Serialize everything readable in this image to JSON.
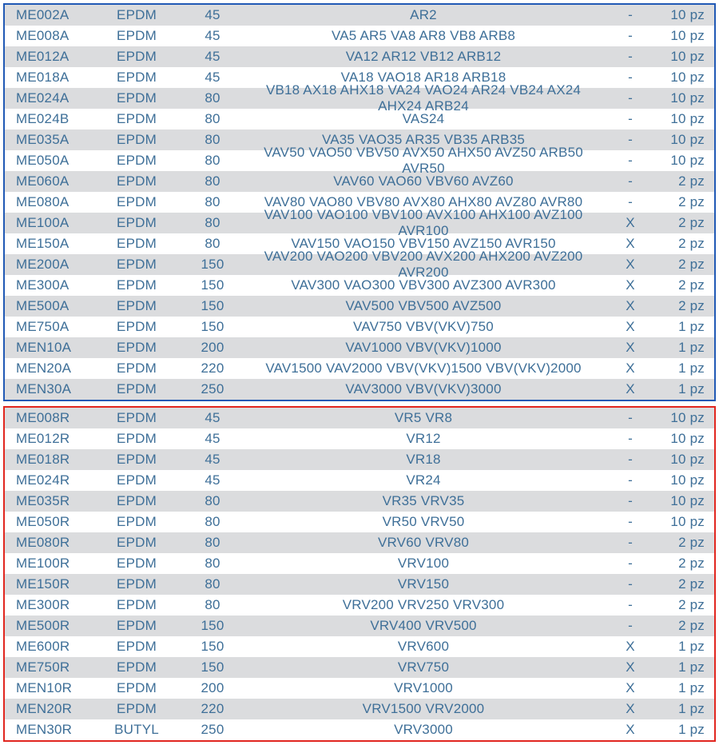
{
  "colors": {
    "text": "#3e6f98",
    "stripe": "#dbdcde",
    "plain": "#ffffff",
    "borderA": "#2059b5",
    "borderB": "#e1261f"
  },
  "columns": [
    {
      "key": "code",
      "class": "c1"
    },
    {
      "key": "mat",
      "class": "c2"
    },
    {
      "key": "num",
      "class": "c3"
    },
    {
      "key": "desc",
      "class": "c4"
    },
    {
      "key": "flag",
      "class": "c5"
    },
    {
      "key": "qty",
      "class": "c6"
    }
  ],
  "tableA": {
    "border": "borderA",
    "rows": [
      {
        "code": "ME002A",
        "mat": "EPDM",
        "num": "45",
        "desc": "AR2",
        "flag": "-",
        "qty": "10 pz"
      },
      {
        "code": "ME008A",
        "mat": "EPDM",
        "num": "45",
        "desc": "VA5 AR5 VA8 AR8 VB8 ARB8",
        "flag": "-",
        "qty": "10 pz"
      },
      {
        "code": "ME012A",
        "mat": "EPDM",
        "num": "45",
        "desc": "VA12 AR12 VB12 ARB12",
        "flag": "-",
        "qty": "10 pz"
      },
      {
        "code": "ME018A",
        "mat": "EPDM",
        "num": "45",
        "desc": "VA18 VAO18 AR18 ARB18",
        "flag": "-",
        "qty": "10 pz"
      },
      {
        "code": "ME024A",
        "mat": "EPDM",
        "num": "80",
        "desc": "VB18 AX18 AHX18 VA24 VAO24 AR24 VB24 AX24 AHX24 ARB24",
        "flag": "-",
        "qty": "10 pz"
      },
      {
        "code": "ME024B",
        "mat": "EPDM",
        "num": "80",
        "desc": "VAS24",
        "flag": "-",
        "qty": "10 pz"
      },
      {
        "code": "ME035A",
        "mat": "EPDM",
        "num": "80",
        "desc": "VA35 VAO35 AR35 VB35 ARB35",
        "flag": "-",
        "qty": "10 pz"
      },
      {
        "code": "ME050A",
        "mat": "EPDM",
        "num": "80",
        "desc": "VAV50 VAO50 VBV50 AVX50 AHX50 AVZ50 ARB50 AVR50",
        "flag": "-",
        "qty": "10 pz"
      },
      {
        "code": "ME060A",
        "mat": "EPDM",
        "num": "80",
        "desc": "VAV60 VAO60 VBV60 AVZ60",
        "flag": "-",
        "qty": "2 pz"
      },
      {
        "code": "ME080A",
        "mat": "EPDM",
        "num": "80",
        "desc": "VAV80 VAO80 VBV80 AVX80 AHX80 AVZ80 AVR80",
        "flag": "-",
        "qty": "2 pz"
      },
      {
        "code": "ME100A",
        "mat": "EPDM",
        "num": "80",
        "desc": "VAV100 VAO100 VBV100 AVX100 AHX100 AVZ100 AVR100",
        "flag": "X",
        "qty": "2 pz"
      },
      {
        "code": "ME150A",
        "mat": "EPDM",
        "num": "80",
        "desc": "VAV150 VAO150 VBV150 AVZ150 AVR150",
        "flag": "X",
        "qty": "2 pz"
      },
      {
        "code": "ME200A",
        "mat": "EPDM",
        "num": "150",
        "desc": "VAV200 VAO200 VBV200 AVX200 AHX200 AVZ200 AVR200",
        "flag": "X",
        "qty": "2 pz"
      },
      {
        "code": "ME300A",
        "mat": "EPDM",
        "num": "150",
        "desc": "VAV300 VAO300 VBV300 AVZ300 AVR300",
        "flag": "X",
        "qty": "2 pz"
      },
      {
        "code": "ME500A",
        "mat": "EPDM",
        "num": "150",
        "desc": "VAV500 VBV500 AVZ500",
        "flag": "X",
        "qty": "2 pz"
      },
      {
        "code": "ME750A",
        "mat": "EPDM",
        "num": "150",
        "desc": "VAV750 VBV(VKV)750",
        "flag": "X",
        "qty": "1 pz"
      },
      {
        "code": "MEN10A",
        "mat": "EPDM",
        "num": "200",
        "desc": "VAV1000 VBV(VKV)1000",
        "flag": "X",
        "qty": "1 pz"
      },
      {
        "code": "MEN20A",
        "mat": "EPDM",
        "num": "220",
        "desc": "VAV1500 VAV2000 VBV(VKV)1500 VBV(VKV)2000",
        "flag": "X",
        "qty": "1 pz"
      },
      {
        "code": "MEN30A",
        "mat": "EPDM",
        "num": "250",
        "desc": "VAV3000 VBV(VKV)3000",
        "flag": "X",
        "qty": "1 pz"
      }
    ]
  },
  "tableB": {
    "border": "borderB",
    "rows": [
      {
        "code": "ME008R",
        "mat": "EPDM",
        "num": "45",
        "desc": "VR5 VR8",
        "flag": "-",
        "qty": "10 pz"
      },
      {
        "code": "ME012R",
        "mat": "EPDM",
        "num": "45",
        "desc": "VR12",
        "flag": "-",
        "qty": "10 pz"
      },
      {
        "code": "ME018R",
        "mat": "EPDM",
        "num": "45",
        "desc": "VR18",
        "flag": "-",
        "qty": "10 pz"
      },
      {
        "code": "ME024R",
        "mat": "EPDM",
        "num": "45",
        "desc": "VR24",
        "flag": "-",
        "qty": "10 pz"
      },
      {
        "code": "ME035R",
        "mat": "EPDM",
        "num": "80",
        "desc": "VR35 VRV35",
        "flag": "-",
        "qty": "10 pz"
      },
      {
        "code": "ME050R",
        "mat": "EPDM",
        "num": "80",
        "desc": "VR50 VRV50",
        "flag": "-",
        "qty": "10 pz"
      },
      {
        "code": "ME080R",
        "mat": "EPDM",
        "num": "80",
        "desc": "VRV60 VRV80",
        "flag": "-",
        "qty": "2 pz"
      },
      {
        "code": "ME100R",
        "mat": "EPDM",
        "num": "80",
        "desc": "VRV100",
        "flag": "-",
        "qty": "2 pz"
      },
      {
        "code": "ME150R",
        "mat": "EPDM",
        "num": "80",
        "desc": "VRV150",
        "flag": "-",
        "qty": "2 pz"
      },
      {
        "code": "ME300R",
        "mat": "EPDM",
        "num": "80",
        "desc": "VRV200 VRV250 VRV300",
        "flag": "-",
        "qty": "2 pz"
      },
      {
        "code": "ME500R",
        "mat": "EPDM",
        "num": "150",
        "desc": "VRV400 VRV500",
        "flag": "-",
        "qty": "2 pz"
      },
      {
        "code": "ME600R",
        "mat": "EPDM",
        "num": "150",
        "desc": "VRV600",
        "flag": "X",
        "qty": "1 pz"
      },
      {
        "code": "ME750R",
        "mat": "EPDM",
        "num": "150",
        "desc": "VRV750",
        "flag": "X",
        "qty": "1 pz"
      },
      {
        "code": "MEN10R",
        "mat": "EPDM",
        "num": "200",
        "desc": "VRV1000",
        "flag": "X",
        "qty": "1 pz"
      },
      {
        "code": "MEN20R",
        "mat": "EPDM",
        "num": "220",
        "desc": "VRV1500 VRV2000",
        "flag": "X",
        "qty": "1 pz"
      },
      {
        "code": "MEN30R",
        "mat": "BUTYL",
        "num": "250",
        "desc": "VRV3000",
        "flag": "X",
        "qty": "1 pz"
      }
    ]
  }
}
